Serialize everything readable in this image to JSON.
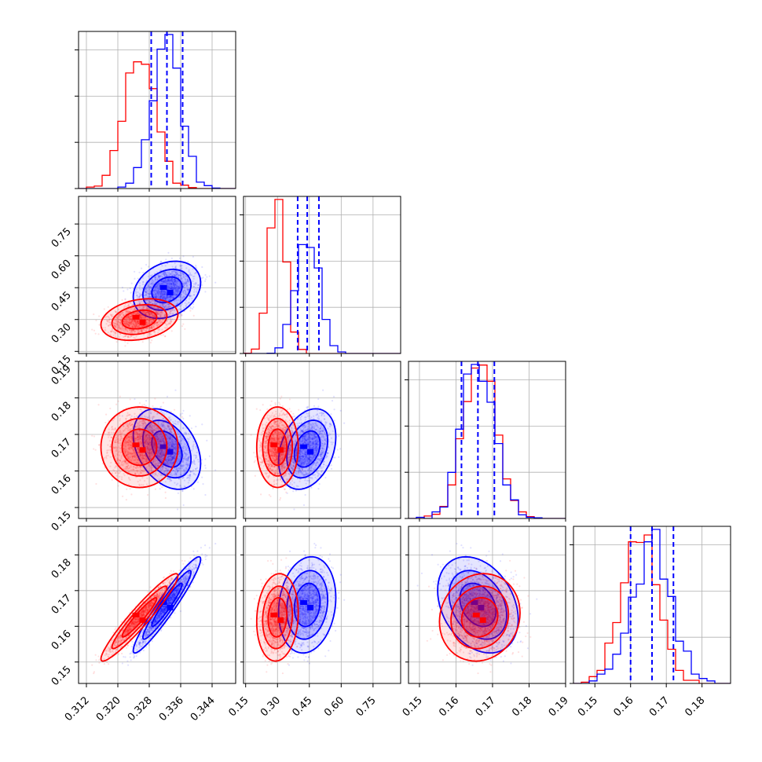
{
  "chart_data": {
    "type": "corner",
    "title": "",
    "grid": true,
    "series": [
      {
        "color": "#ff0000",
        "means": [
          0.3255,
          0.3,
          0.1665,
          0.1625
        ],
        "sds": [
          0.004,
          0.04,
          0.0045,
          0.005
        ],
        "corr": [
          [
            1,
            0.25,
            0,
            0.95
          ],
          [
            0.25,
            1,
            0,
            0.1
          ],
          [
            0,
            0,
            1,
            0.1
          ],
          [
            0.95,
            0.1,
            0.1,
            1
          ]
        ],
        "hist_quantiles": null
      },
      {
        "color": "#0000ff",
        "means": [
          0.3325,
          0.44,
          0.166,
          0.166
        ],
        "sds": [
          0.0035,
          0.055,
          0.0045,
          0.0055
        ],
        "corr": [
          [
            1,
            0.25,
            -0.35,
            0.95
          ],
          [
            0.25,
            1,
            0.3,
            0.15
          ],
          [
            -0.35,
            0.3,
            1,
            -0.3
          ],
          [
            0.95,
            0.15,
            -0.3,
            1
          ]
        ],
        "hist_quantiles": [
          [
            0.3285,
            0.3325,
            0.3365
          ],
          [
            0.395,
            0.44,
            0.495
          ],
          [
            0.1615,
            0.166,
            0.1705
          ],
          [
            0.16,
            0.166,
            0.172
          ]
        ]
      }
    ],
    "axes": [
      {
        "lim": [
          0.31,
          0.35
        ],
        "ticks": [
          0.312,
          0.32,
          0.328,
          0.336,
          0.344
        ],
        "tick_labels": [
          "0.312",
          "0.320",
          "0.328",
          "0.336",
          "0.344"
        ]
      },
      {
        "lim": [
          0.14,
          0.88
        ],
        "ticks": [
          0.15,
          0.3,
          0.45,
          0.6,
          0.75
        ],
        "tick_labels": [
          "0.15",
          "0.30",
          "0.45",
          "0.60",
          "0.75"
        ]
      },
      {
        "lim": [
          0.147,
          0.19
        ],
        "ticks": [
          0.15,
          0.16,
          0.17,
          0.18,
          0.19
        ],
        "tick_labels": [
          "0.15",
          "0.16",
          "0.17",
          "0.18",
          "0.19"
        ]
      },
      {
        "lim": [
          0.144,
          0.188
        ],
        "ticks": [
          0.15,
          0.16,
          0.17,
          0.18
        ],
        "tick_labels": [
          "0.15",
          "0.16",
          "0.17",
          "0.18"
        ]
      }
    ]
  }
}
